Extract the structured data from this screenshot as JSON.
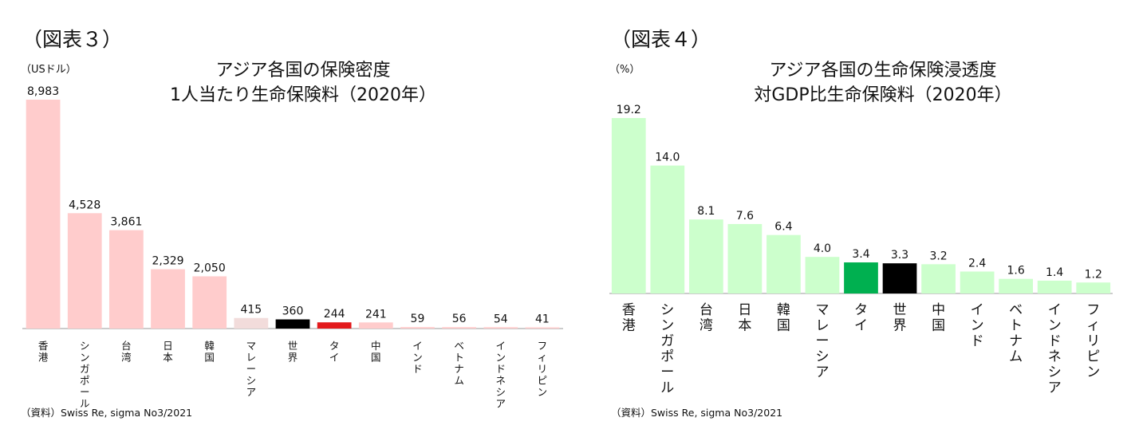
{
  "left_chart": {
    "figure_label": "（図表３）",
    "unit": "（USドル）",
    "title_line1": "アジア各国の保険密度",
    "title_line2": "1人当たり生命保険料（2020年）",
    "source": "（資料）Swiss Re, sigma No3/2021"
  },
  "right_chart": {
    "figure_label": "（図表４）",
    "unit": "（%）",
    "title_line1": "アジア各国の生命保険浸透度",
    "title_line2": "対GDP比生命保険料（2020年）",
    "source": "（資料）Swiss Re, sigma No3/2021"
  },
  "chart_data": [
    {
      "type": "bar",
      "title": "アジア各国の保険密度 1人当たり生命保険料（2020年）",
      "ylabel": "（USドル）",
      "ylim": [
        0,
        8983
      ],
      "grid": false,
      "categories": [
        "香港",
        "シンガポール",
        "台湾",
        "日本",
        "韓国",
        "マレーシア",
        "世界",
        "タイ",
        "中国",
        "インド",
        "ベトナム",
        "インドネシア",
        "フィリピン"
      ],
      "values": [
        8983,
        4528,
        3861,
        2329,
        2050,
        415,
        360,
        244,
        241,
        59,
        56,
        54,
        41
      ],
      "value_labels": [
        "8,983",
        "4,528",
        "3,861",
        "2,329",
        "2,050",
        "415",
        "360",
        "244",
        "241",
        "59",
        "56",
        "54",
        "41"
      ],
      "colors": [
        "#ffcccc",
        "#ffcccc",
        "#ffcccc",
        "#ffcccc",
        "#ffcccc",
        "#f2dcdb",
        "#000000",
        "#e31a1c",
        "#ffcccc",
        "#ffcccc",
        "#ffcccc",
        "#ffcccc",
        "#ffcccc"
      ]
    },
    {
      "type": "bar",
      "title": "アジア各国の生命保険浸透度 対GDP比生命保険料（2020年）",
      "ylabel": "（%）",
      "ylim": [
        0,
        19.2
      ],
      "grid": false,
      "categories": [
        "香港",
        "シンガポール",
        "台湾",
        "日本",
        "韓国",
        "マレーシア",
        "タイ",
        "世界",
        "中国",
        "インド",
        "ベトナム",
        "インドネシア",
        "フィリピン"
      ],
      "values": [
        19.2,
        14.0,
        8.1,
        7.6,
        6.4,
        4.0,
        3.4,
        3.3,
        3.2,
        2.4,
        1.6,
        1.4,
        1.2
      ],
      "value_labels": [
        "19.2",
        "14.0",
        "8.1",
        "7.6",
        "6.4",
        "4.0",
        "3.4",
        "3.3",
        "3.2",
        "2.4",
        "1.6",
        "1.4",
        "1.2"
      ],
      "colors": [
        "#ccffcc",
        "#ccffcc",
        "#ccffcc",
        "#ccffcc",
        "#ccffcc",
        "#ccffcc",
        "#00b050",
        "#000000",
        "#ccffcc",
        "#ccffcc",
        "#ccffcc",
        "#ccffcc",
        "#ccffcc"
      ]
    }
  ]
}
